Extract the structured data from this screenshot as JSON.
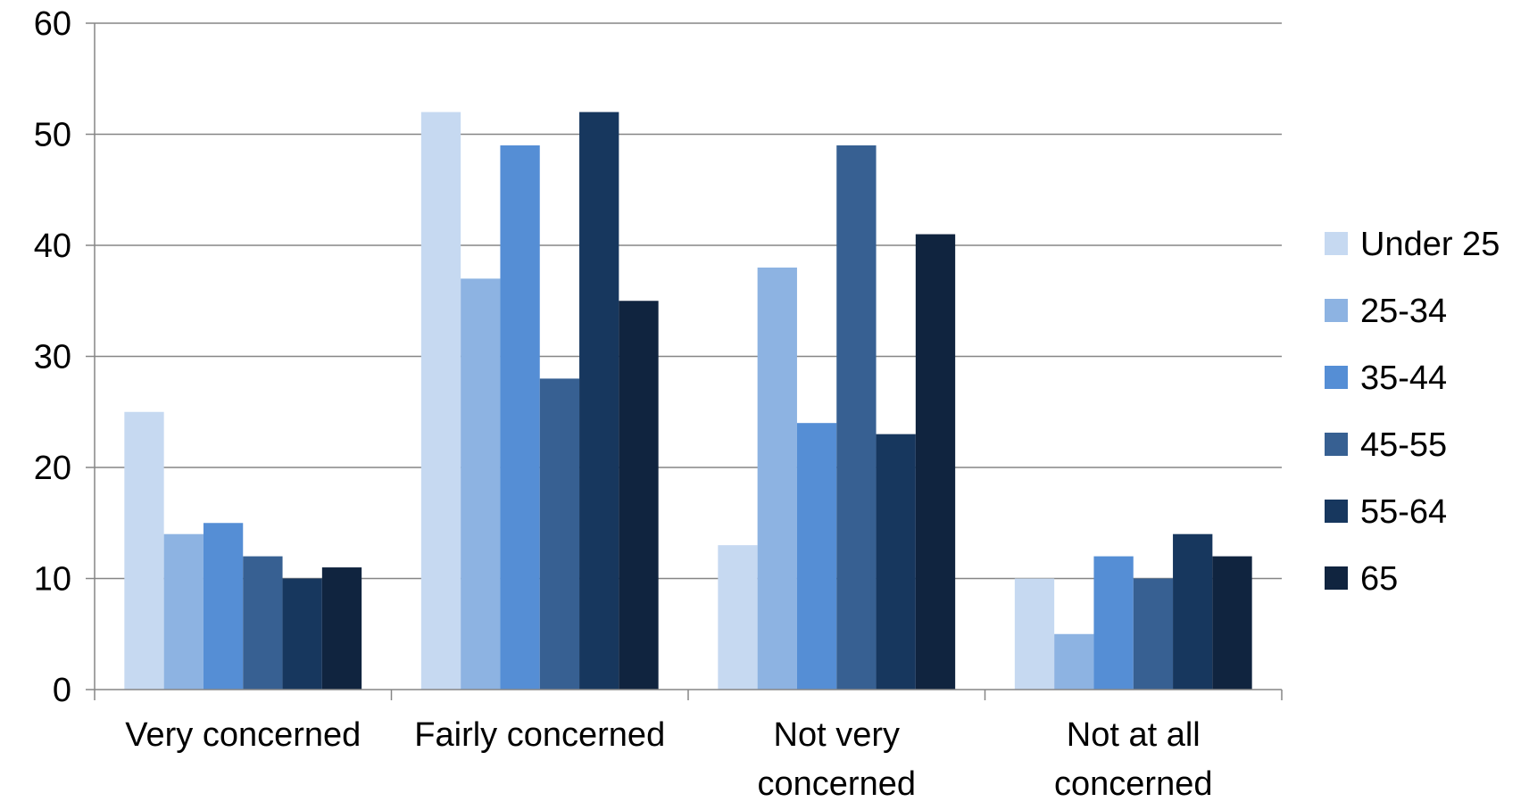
{
  "chart_data": {
    "type": "bar",
    "categories": [
      "Very concerned",
      "Fairly concerned",
      "Not very concerned",
      "Not at all concerned"
    ],
    "category_lines": [
      [
        "Very concerned"
      ],
      [
        "Fairly concerned"
      ],
      [
        "Not very",
        "concerned"
      ],
      [
        "Not at all",
        "concerned"
      ]
    ],
    "series": [
      {
        "name": "Under 25",
        "color": "#c6d9f1",
        "values": [
          25,
          52,
          13,
          10
        ]
      },
      {
        "name": "25-34",
        "color": "#8db3e2",
        "values": [
          14,
          37,
          38,
          5
        ]
      },
      {
        "name": "35-44",
        "color": "#558ed5",
        "values": [
          15,
          49,
          24,
          12
        ]
      },
      {
        "name": "45-55",
        "color": "#376092",
        "values": [
          12,
          28,
          49,
          10
        ]
      },
      {
        "name": "55-64",
        "color": "#17375e",
        "values": [
          10,
          52,
          23,
          14
        ]
      },
      {
        "name": "65",
        "color": "#10243f",
        "values": [
          11,
          35,
          41,
          12
        ]
      }
    ],
    "yticks": [
      0,
      10,
      20,
      30,
      40,
      50,
      60
    ],
    "ylim": [
      0,
      60
    ],
    "title": "",
    "xlabel": "",
    "ylabel": "",
    "grid": true,
    "legend_position": "right"
  }
}
